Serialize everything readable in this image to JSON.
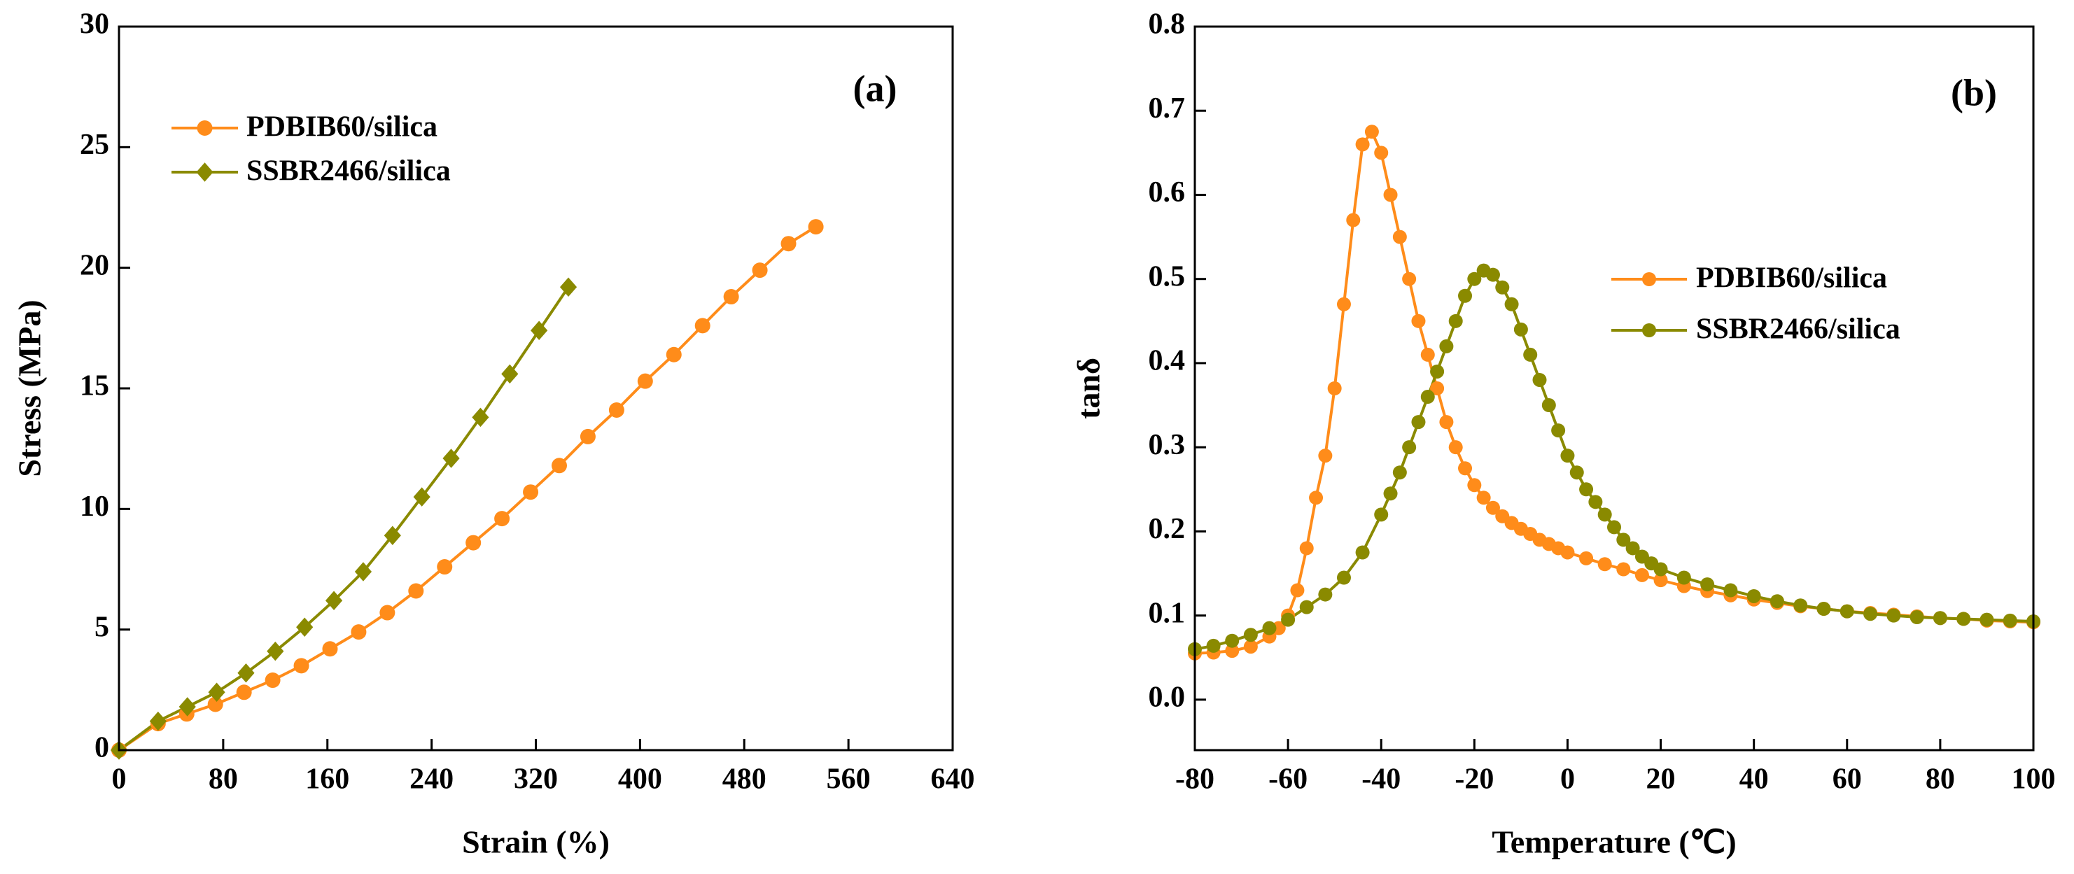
{
  "chart_data": [
    {
      "type": "line",
      "annotation": "(a)",
      "xlabel": "Strain (%)",
      "ylabel": "Stress (MPa)",
      "xlim": [
        0,
        640
      ],
      "xticks": [
        0,
        80,
        160,
        240,
        320,
        400,
        480,
        560,
        640
      ],
      "ylim": [
        0,
        30
      ],
      "yticks": [
        0,
        5,
        10,
        15,
        20,
        25,
        30
      ],
      "legend": "upper left",
      "series": [
        {
          "name": "PDBIB60/silica",
          "color": "#ff8c1a",
          "marker": "circle",
          "x": [
            0,
            30,
            52,
            74,
            96,
            118,
            140,
            162,
            184,
            206,
            228,
            250,
            272,
            294,
            316,
            338,
            360,
            382,
            404,
            426,
            448,
            470,
            492,
            514,
            535
          ],
          "values": [
            0,
            1.1,
            1.5,
            1.9,
            2.4,
            2.9,
            3.5,
            4.2,
            4.9,
            5.7,
            6.6,
            7.6,
            8.6,
            9.6,
            10.7,
            11.8,
            13.0,
            14.1,
            15.3,
            16.4,
            17.6,
            18.8,
            19.9,
            21.0,
            21.7
          ]
        },
        {
          "name": "SSBR2466/silica",
          "color": "#8a8a00",
          "marker": "diamond",
          "x": [
            0,
            30,
            52.5,
            75,
            97.5,
            120,
            142.5,
            165,
            187.5,
            210,
            232.5,
            255,
            277.5,
            300,
            322.5,
            345
          ],
          "values": [
            0,
            1.2,
            1.8,
            2.4,
            3.2,
            4.1,
            5.1,
            6.2,
            7.4,
            8.9,
            10.5,
            12.1,
            13.8,
            15.6,
            17.4,
            19.2
          ]
        }
      ]
    },
    {
      "type": "line",
      "annotation": "(b)",
      "xlabel": "Temperature (℃)",
      "ylabel": "tanδ",
      "xlim": [
        -80,
        100
      ],
      "xticks": [
        -80,
        -60,
        -40,
        -20,
        0,
        20,
        40,
        60,
        80,
        100
      ],
      "ylim": [
        -0.06,
        0.8
      ],
      "yticks": [
        {
          "value": 0,
          "label": "0.0"
        },
        0.1,
        0.2,
        0.3,
        0.4,
        0.5,
        0.6,
        0.7,
        0.8
      ],
      "legend": "center right",
      "series": [
        {
          "name": "PDBIB60/silica",
          "color": "#ff8c1a",
          "marker": "circle",
          "x": [
            -80,
            -76,
            -72,
            -68,
            -64,
            -62,
            -60,
            -58,
            -56,
            -54,
            -52,
            -50,
            -48,
            -46,
            -44,
            -42,
            -40,
            -38,
            -36,
            -34,
            -32,
            -30,
            -28,
            -26,
            -24,
            -22,
            -20,
            -18,
            -16,
            -14,
            -12,
            -10,
            -8,
            -6,
            -4,
            -2,
            0,
            4,
            8,
            12,
            16,
            20,
            25,
            30,
            35,
            40,
            45,
            50,
            55,
            60,
            65,
            70,
            75,
            80,
            85,
            90,
            95,
            100
          ],
          "values": [
            0.055,
            0.056,
            0.058,
            0.063,
            0.075,
            0.085,
            0.1,
            0.13,
            0.18,
            0.24,
            0.29,
            0.37,
            0.47,
            0.57,
            0.66,
            0.675,
            0.65,
            0.6,
            0.55,
            0.5,
            0.45,
            0.41,
            0.37,
            0.33,
            0.3,
            0.275,
            0.255,
            0.24,
            0.228,
            0.218,
            0.21,
            0.203,
            0.197,
            0.19,
            0.185,
            0.18,
            0.175,
            0.168,
            0.161,
            0.155,
            0.148,
            0.142,
            0.135,
            0.129,
            0.124,
            0.119,
            0.115,
            0.111,
            0.108,
            0.105,
            0.103,
            0.101,
            0.099,
            0.097,
            0.096,
            0.094,
            0.093,
            0.092
          ]
        },
        {
          "name": "SSBR2466/silica",
          "color": "#8a8a00",
          "marker": "circle",
          "x": [
            -80,
            -76,
            -72,
            -68,
            -64,
            -60,
            -56,
            -52,
            -48,
            -44,
            -40,
            -38,
            -36,
            -34,
            -32,
            -30,
            -28,
            -26,
            -24,
            -22,
            -20,
            -18,
            -16,
            -14,
            -12,
            -10,
            -8,
            -6,
            -4,
            -2,
            0,
            2,
            4,
            6,
            8,
            10,
            12,
            14,
            16,
            18,
            20,
            25,
            30,
            35,
            40,
            45,
            50,
            55,
            60,
            65,
            70,
            75,
            80,
            85,
            90,
            95,
            100
          ],
          "values": [
            0.06,
            0.064,
            0.07,
            0.077,
            0.085,
            0.095,
            0.11,
            0.125,
            0.145,
            0.175,
            0.22,
            0.245,
            0.27,
            0.3,
            0.33,
            0.36,
            0.39,
            0.42,
            0.45,
            0.48,
            0.5,
            0.51,
            0.505,
            0.49,
            0.47,
            0.44,
            0.41,
            0.38,
            0.35,
            0.32,
            0.29,
            0.27,
            0.25,
            0.235,
            0.22,
            0.205,
            0.19,
            0.18,
            0.17,
            0.162,
            0.155,
            0.145,
            0.137,
            0.13,
            0.123,
            0.117,
            0.112,
            0.108,
            0.105,
            0.102,
            0.1,
            0.098,
            0.097,
            0.096,
            0.095,
            0.094,
            0.093
          ]
        }
      ]
    }
  ]
}
